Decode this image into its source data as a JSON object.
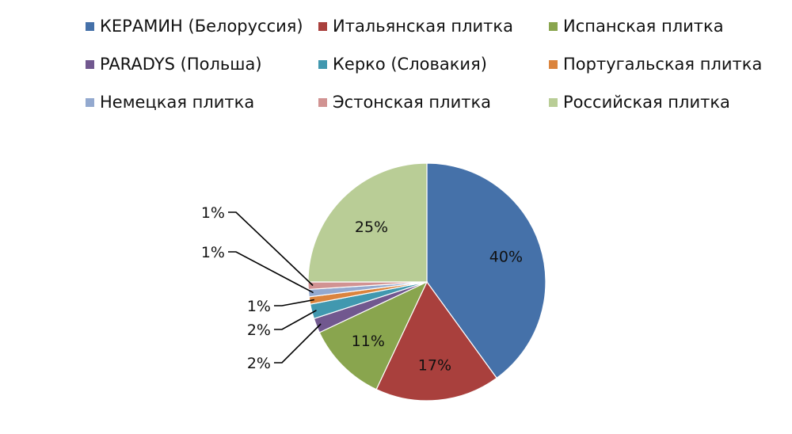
{
  "chart_data": {
    "type": "pie",
    "title": "",
    "slices": [
      {
        "label": "КЕРАМИН (Белоруссия)",
        "value": 40,
        "value_label": "40%",
        "color": "#4571a9"
      },
      {
        "label": "Итальянская плитка",
        "value": 17,
        "value_label": "17%",
        "color": "#a9403d"
      },
      {
        "label": "Испанская плитка",
        "value": 11,
        "value_label": "11%",
        "color": "#89a54e"
      },
      {
        "label": "PARADYS (Польша)",
        "value": 2,
        "value_label": "2%",
        "color": "#71588f"
      },
      {
        "label": "Керко (Словакия)",
        "value": 2,
        "value_label": "2%",
        "color": "#4198af"
      },
      {
        "label": "Португальская плитка",
        "value": 1,
        "value_label": "1%",
        "color": "#db843d"
      },
      {
        "label": "Немецкая плитка",
        "value": 1,
        "value_label": "1%",
        "color": "#93a9cf"
      },
      {
        "label": "Эстонская плитка",
        "value": 1,
        "value_label": "1%",
        "color": "#d19392"
      },
      {
        "label": "Российская плитка",
        "value": 25,
        "value_label": "25%",
        "color": "#b9cd96"
      }
    ],
    "legend_position": "top"
  }
}
